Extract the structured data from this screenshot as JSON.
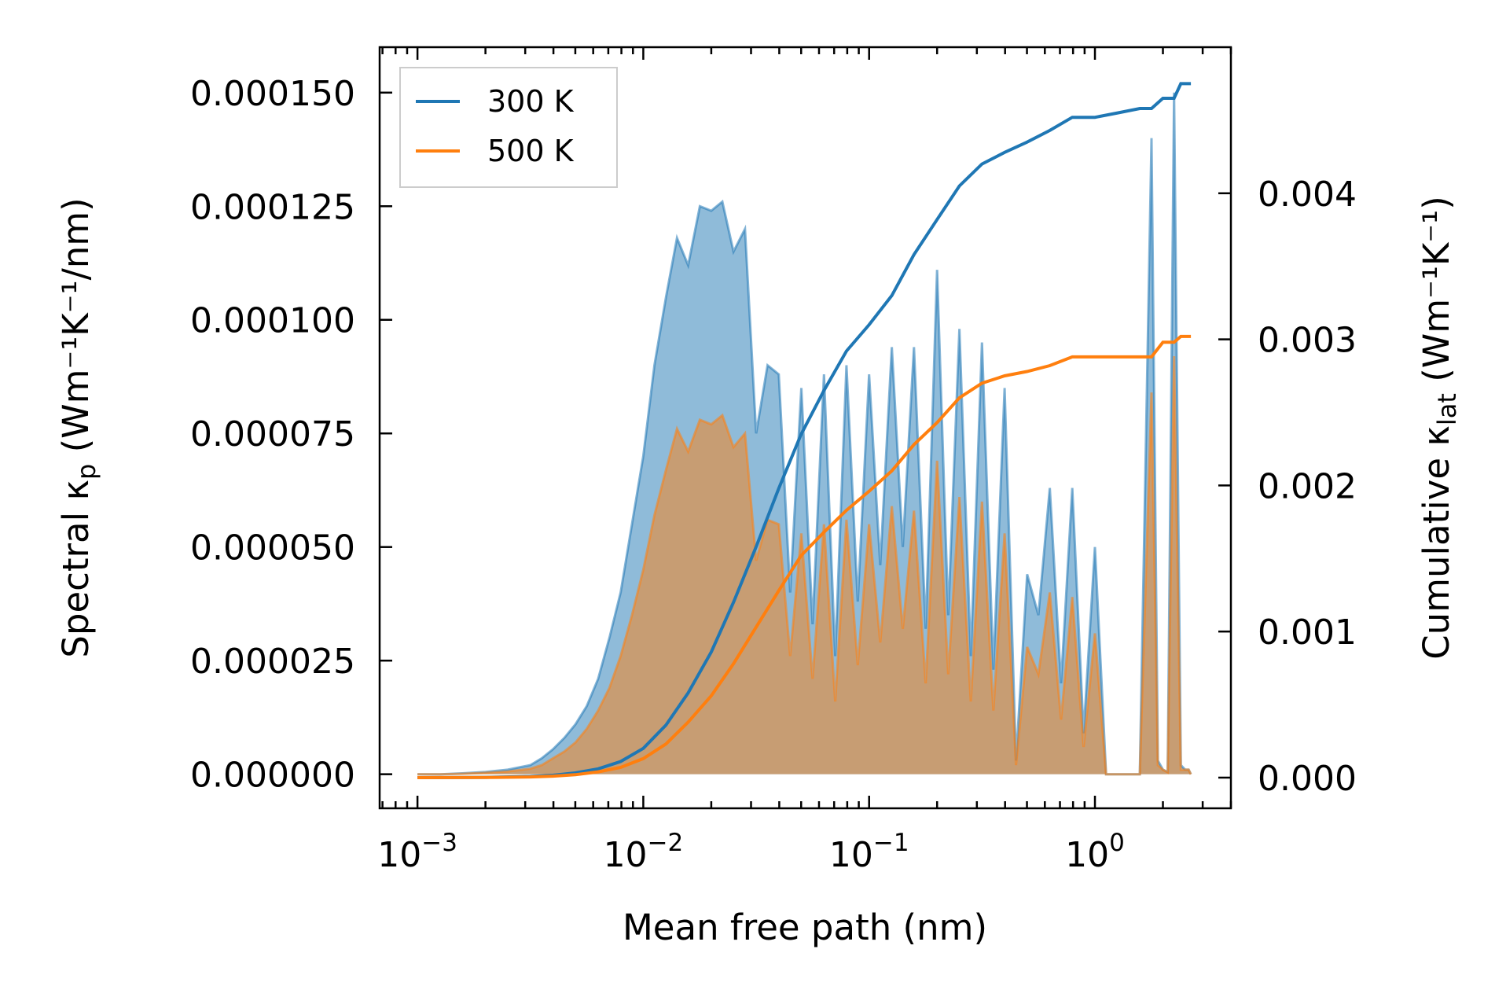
{
  "chart_data": {
    "type": "area",
    "xscale": "log",
    "xlabel": "Mean free path (nm)",
    "ylabel": {
      "prefix": "Spectral κ",
      "sub": "p",
      "units": " (Wm⁻¹K⁻¹/nm)"
    },
    "ylabel_right": {
      "prefix": "Cumulative κ",
      "sub": "lat",
      "units": " (Wm⁻¹K⁻¹)"
    },
    "xlim": [
      0.00068,
      4.0
    ],
    "ylim": [
      -7.5e-06,
      0.00016
    ],
    "ylim_right": [
      -0.00021,
      0.005
    ],
    "xticks": [
      0.001,
      0.01,
      0.1,
      1
    ],
    "xtick_labels": [
      {
        "base": "10",
        "exp": "−3"
      },
      {
        "base": "10",
        "exp": "−2"
      },
      {
        "base": "10",
        "exp": "−1"
      },
      {
        "base": "10",
        "exp": "0"
      }
    ],
    "yticks": [
      0,
      2.5e-05,
      5e-05,
      7.5e-05,
      0.0001,
      0.000125,
      0.00015
    ],
    "ytick_labels": [
      "0.000000",
      "0.000025",
      "0.000050",
      "0.000075",
      "0.000100",
      "0.000125",
      "0.000150"
    ],
    "yticks_right": [
      0,
      0.001,
      0.002,
      0.003,
      0.004
    ],
    "ytick_labels_right": [
      "0.000",
      "0.001",
      "0.002",
      "0.003",
      "0.004"
    ],
    "legend": {
      "position": "top-left",
      "entries": [
        "300 K",
        "500 K"
      ]
    },
    "colors": {
      "300 K": "#1f77b4",
      "500 K": "#ff7f0e"
    },
    "spectral": {
      "x": [
        0.001,
        0.00126,
        0.00158,
        0.002,
        0.00251,
        0.00316,
        0.00355,
        0.00398,
        0.00447,
        0.00501,
        0.00562,
        0.00631,
        0.00708,
        0.00794,
        0.00891,
        0.01,
        0.0112,
        0.0126,
        0.0141,
        0.0158,
        0.0178,
        0.02,
        0.0224,
        0.0251,
        0.0282,
        0.0316,
        0.0355,
        0.0398,
        0.0447,
        0.0501,
        0.0562,
        0.0631,
        0.0708,
        0.0794,
        0.0891,
        0.1,
        0.112,
        0.126,
        0.141,
        0.158,
        0.178,
        0.2,
        0.224,
        0.251,
        0.282,
        0.316,
        0.355,
        0.398,
        0.447,
        0.501,
        0.562,
        0.631,
        0.708,
        0.794,
        0.891,
        1.0,
        1.12,
        1.26,
        1.41,
        1.58,
        1.78,
        1.9,
        2.0,
        2.1,
        2.24,
        2.4,
        2.51,
        2.6,
        2.66
      ],
      "series": [
        {
          "name": "300 K",
          "values": [
            0,
            0,
            2e-07,
            5e-07,
            1e-06,
            2e-06,
            3.5e-06,
            5.5e-06,
            8e-06,
            1.1e-05,
            1.5e-05,
            2.1e-05,
            3e-05,
            4e-05,
            5.5e-05,
            7e-05,
            9e-05,
            0.000105,
            0.000118,
            0.000112,
            0.000125,
            0.000124,
            0.000126,
            0.000115,
            0.00012,
            7.5e-05,
            9e-05,
            8.8e-05,
            4e-05,
            8.5e-05,
            3.3e-05,
            8.8e-05,
            2.6e-05,
            9e-05,
            3.8e-05,
            8.8e-05,
            4.6e-05,
            9.4e-05,
            5e-05,
            9.4e-05,
            3.2e-05,
            0.000111,
            3.5e-05,
            9.8e-05,
            2.6e-05,
            9.5e-05,
            2.3e-05,
            8.5e-05,
            3e-06,
            4.4e-05,
            3.5e-05,
            6.3e-05,
            2e-05,
            6.3e-05,
            9e-06,
            5e-05,
            0,
            0,
            0,
            0,
            0.00014,
            3e-06,
            1e-06,
            5e-07,
            0.00015,
            2e-06,
            1e-06,
            1e-06,
            0
          ]
        },
        {
          "name": "500 K",
          "values": [
            0,
            0,
            1e-07,
            3e-07,
            6e-07,
            1.2e-06,
            2e-06,
            3.5e-06,
            5e-06,
            7e-06,
            1e-05,
            1.4e-05,
            1.9e-05,
            2.6e-05,
            3.5e-05,
            4.5e-05,
            5.7e-05,
            6.7e-05,
            7.6e-05,
            7.1e-05,
            7.8e-05,
            7.7e-05,
            7.9e-05,
            7.2e-05,
            7.5e-05,
            4.7e-05,
            5.6e-05,
            5.5e-05,
            2.6e-05,
            5.3e-05,
            2.1e-05,
            5.5e-05,
            1.6e-05,
            5.6e-05,
            2.4e-05,
            5.5e-05,
            2.9e-05,
            5.9e-05,
            3.2e-05,
            5.8e-05,
            2e-05,
            6.9e-05,
            2.2e-05,
            6.1e-05,
            1.6e-05,
            6e-05,
            1.4e-05,
            5.3e-05,
            2e-06,
            2.8e-05,
            2.2e-05,
            4e-05,
            1.2e-05,
            3.9e-05,
            6e-06,
            3.1e-05,
            0,
            0,
            0,
            0,
            8.4e-05,
            2e-06,
            1e-06,
            4e-07,
            9.2e-05,
            1e-06,
            1e-06,
            1e-06,
            0
          ]
        }
      ]
    },
    "cumulative": {
      "x": [
        0.001,
        0.002,
        0.00316,
        0.00398,
        0.005,
        0.00631,
        0.00794,
        0.01,
        0.0126,
        0.0158,
        0.02,
        0.0251,
        0.0316,
        0.0398,
        0.05,
        0.0631,
        0.0794,
        0.1,
        0.126,
        0.158,
        0.2,
        0.251,
        0.316,
        0.398,
        0.5,
        0.631,
        0.794,
        1.0,
        1.26,
        1.58,
        1.78,
        2.0,
        2.24,
        2.4,
        2.66
      ],
      "series": [
        {
          "name": "300 K",
          "values": [
            0,
            2e-06,
            8e-06,
            1.6e-05,
            3.2e-05,
            6e-05,
            0.00011,
            0.0002,
            0.00036,
            0.00058,
            0.00086,
            0.0012,
            0.00158,
            0.00198,
            0.00235,
            0.00265,
            0.00292,
            0.0031,
            0.0033,
            0.00358,
            0.00382,
            0.00405,
            0.0042,
            0.00428,
            0.00435,
            0.00443,
            0.00452,
            0.00452,
            0.00455,
            0.00458,
            0.00458,
            0.00465,
            0.00465,
            0.00475,
            0.00475
          ]
        },
        {
          "name": "500 K",
          "values": [
            0,
            1e-06,
            5e-06,
            1e-05,
            2e-05,
            4e-05,
            7e-05,
            0.00013,
            0.00023,
            0.00038,
            0.00056,
            0.00078,
            0.00103,
            0.00128,
            0.00152,
            0.00168,
            0.00183,
            0.00196,
            0.0021,
            0.00228,
            0.00243,
            0.0026,
            0.0027,
            0.00275,
            0.00278,
            0.00282,
            0.00288,
            0.00288,
            0.00288,
            0.00288,
            0.00288,
            0.00298,
            0.00298,
            0.00302,
            0.00302
          ]
        }
      ]
    }
  }
}
